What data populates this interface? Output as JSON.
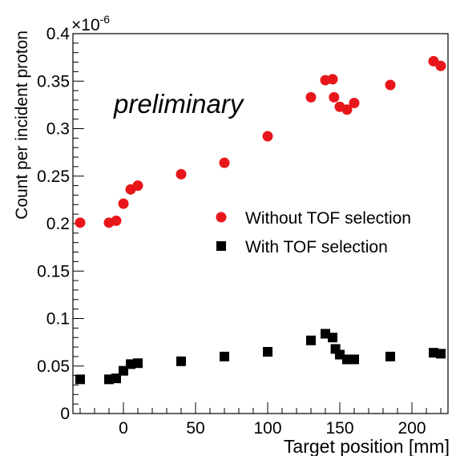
{
  "chart_data": {
    "type": "scatter",
    "xlabel": "Target position [mm]",
    "ylabel": "Count per incident proton",
    "exponent_base": "×10",
    "exponent_power": "-6",
    "annotation": "preliminary",
    "xlim": [
      -35,
      225
    ],
    "ylim": [
      0,
      0.4
    ],
    "x_ticks": [
      0,
      50,
      100,
      150,
      200
    ],
    "y_ticks": [
      0,
      0.05,
      0.1,
      0.15,
      0.2,
      0.25,
      0.3,
      0.35,
      0.4
    ],
    "y_tick_labels": [
      "0",
      "0.05",
      "0.1",
      "0.15",
      "0.2",
      "0.25",
      "0.3",
      "0.35",
      "0.4"
    ],
    "legend_position": "right-middle",
    "series": [
      {
        "name": "Without TOF selection",
        "marker": "circle",
        "color": "#e8161a",
        "x": [
          -30,
          -10,
          -5,
          0,
          5,
          10,
          40,
          70,
          100,
          130,
          140,
          145,
          146,
          150,
          155,
          160,
          185,
          215,
          220
        ],
        "y": [
          0.201,
          0.201,
          0.203,
          0.221,
          0.236,
          0.24,
          0.252,
          0.264,
          0.292,
          0.333,
          0.351,
          0.352,
          0.333,
          0.323,
          0.32,
          0.327,
          0.346,
          0.371,
          0.366
        ]
      },
      {
        "name": "With TOF selection",
        "marker": "square",
        "color": "#000000",
        "x": [
          -30,
          -10,
          -5,
          0,
          5,
          10,
          40,
          70,
          100,
          130,
          140,
          145,
          147,
          150,
          155,
          160,
          185,
          215,
          220
        ],
        "y": [
          0.036,
          0.036,
          0.037,
          0.045,
          0.052,
          0.053,
          0.055,
          0.06,
          0.065,
          0.077,
          0.084,
          0.08,
          0.068,
          0.062,
          0.057,
          0.057,
          0.06,
          0.064,
          0.063
        ]
      }
    ]
  }
}
